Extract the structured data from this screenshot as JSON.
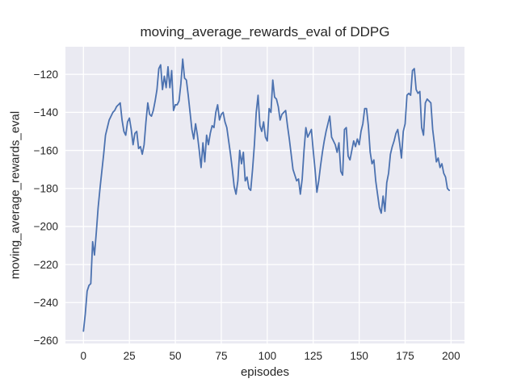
{
  "chart_data": {
    "type": "line",
    "title": "moving_average_rewards_eval of DDPG",
    "xlabel": "episodes",
    "ylabel": "moving_average_rewards_eval",
    "x_ticks": [
      0,
      25,
      50,
      75,
      100,
      125,
      150,
      175,
      200
    ],
    "y_ticks": [
      -260,
      -240,
      -220,
      -200,
      -180,
      -160,
      -140,
      -120
    ],
    "xlim": [
      -9.8,
      207.3
    ],
    "ylim": [
      -261.5,
      -105.5
    ],
    "grid": true,
    "legend": "none",
    "style": "seaborn-darkgrid",
    "colors": {
      "line": "#4c72b0",
      "axes_background": "#eaeaf2",
      "grid": "#ffffff",
      "text": "#262626",
      "figure_background": "#ffffff"
    },
    "series": [
      {
        "name": "moving_average_rewards_eval",
        "x_start": 0,
        "x_step": 1,
        "values": [
          -255,
          -246,
          -234,
          -231,
          -230,
          -208,
          -215,
          -203,
          -190,
          -180,
          -171,
          -162,
          -152,
          -148,
          -144,
          -142,
          -140,
          -139,
          -137,
          -136,
          -135,
          -144,
          -150,
          -152,
          -145,
          -143,
          -149,
          -157,
          -151,
          -150,
          -159,
          -158,
          -162,
          -157,
          -145,
          -135,
          -141,
          -142,
          -139,
          -134,
          -128,
          -117,
          -115,
          -128,
          -121,
          -127,
          -116,
          -127,
          -118,
          -139,
          -136,
          -136,
          -134,
          -125,
          -112,
          -122,
          -123,
          -131,
          -140,
          -149,
          -154,
          -146,
          -152,
          -160,
          -169,
          -156,
          -166,
          -152,
          -157,
          -151,
          -147,
          -148,
          -140,
          -136,
          -144,
          -141,
          -140,
          -145,
          -148,
          -155,
          -162,
          -170,
          -179,
          -183,
          -176,
          -160,
          -167,
          -161,
          -176,
          -174,
          -180,
          -181,
          -170,
          -157,
          -140,
          -131,
          -147,
          -150,
          -145,
          -153,
          -155,
          -138,
          -140,
          -123,
          -132,
          -133,
          -137,
          -144,
          -141,
          -140,
          -139,
          -147,
          -154,
          -162,
          -170,
          -173,
          -176,
          -175,
          -183,
          -175,
          -160,
          -148,
          -153,
          -151,
          -149,
          -160,
          -170,
          -182,
          -176,
          -168,
          -161,
          -155,
          -150,
          -146,
          -142,
          -153,
          -155,
          -157,
          -161,
          -156,
          -171,
          -173,
          -149,
          -148,
          -163,
          -165,
          -160,
          -155,
          -158,
          -154,
          -157,
          -150,
          -146,
          -138,
          -138,
          -147,
          -161,
          -167,
          -165,
          -176,
          -183,
          -190,
          -193,
          -184,
          -192,
          -177,
          -172,
          -162,
          -158,
          -155,
          -151,
          -149,
          -156,
          -164,
          -150,
          -146,
          -131,
          -130,
          -131,
          -118,
          -117,
          -128,
          -130,
          -129,
          -148,
          -152,
          -135,
          -133,
          -134,
          -135,
          -149,
          -157,
          -166,
          -164,
          -169,
          -167,
          -172,
          -174,
          -180,
          -181
        ]
      }
    ]
  }
}
